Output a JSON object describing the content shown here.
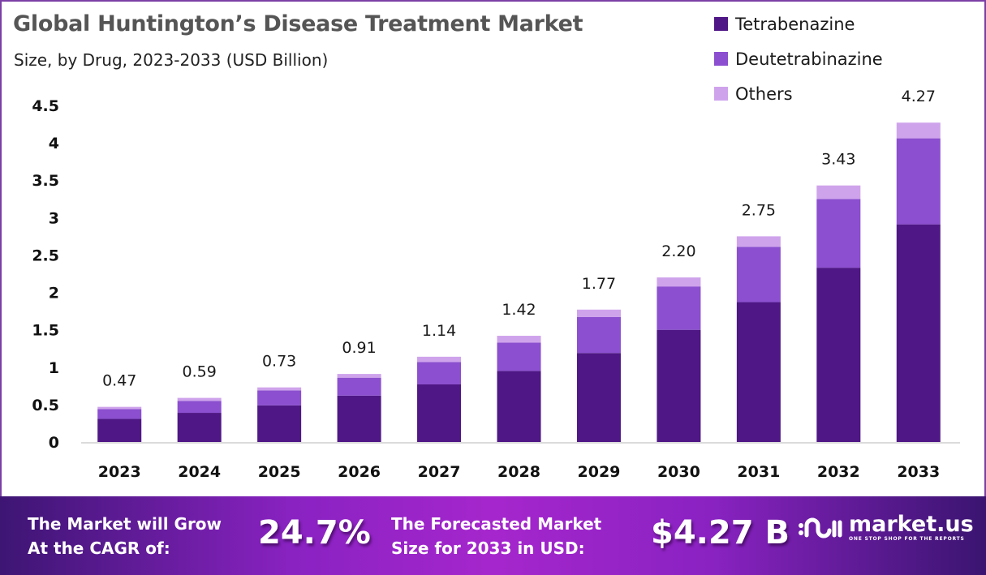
{
  "header": {
    "title": "Global Huntington’s Disease Treatment Market",
    "subtitle": "Size, by Drug, 2023-2033 (USD Billion)"
  },
  "legend": [
    {
      "label": "Tetrabenazine",
      "color": "#4f1785"
    },
    {
      "label": "Deutetrabinazine",
      "color": "#8b4fcf"
    },
    {
      "label": "Others",
      "color": "#cfa3ec"
    }
  ],
  "chart_data": {
    "type": "bar",
    "stacked": true,
    "title": "Global Huntington’s Disease Treatment Market",
    "subtitle": "Size, by Drug, 2023-2033 (USD Billion)",
    "xlabel": "",
    "ylabel": "",
    "ylim": [
      0,
      4.5
    ],
    "yticks": [
      "0",
      "0.5",
      "1",
      "1.5",
      "2",
      "2.5",
      "3",
      "3.5",
      "4",
      "4.5"
    ],
    "grid": false,
    "legend_position": "top-right",
    "categories": [
      "2023",
      "2024",
      "2025",
      "2026",
      "2027",
      "2028",
      "2029",
      "2030",
      "2031",
      "2032",
      "2033"
    ],
    "series": [
      {
        "name": "Tetrabenazine",
        "color": "#4f1785",
        "values": [
          0.31,
          0.39,
          0.49,
          0.62,
          0.77,
          0.95,
          1.19,
          1.5,
          1.87,
          2.33,
          2.91
        ]
      },
      {
        "name": "Deutetrabinazine",
        "color": "#8b4fcf",
        "values": [
          0.13,
          0.16,
          0.2,
          0.24,
          0.3,
          0.38,
          0.48,
          0.58,
          0.74,
          0.92,
          1.15
        ]
      },
      {
        "name": "Others",
        "color": "#cfa3ec",
        "values": [
          0.03,
          0.04,
          0.04,
          0.05,
          0.07,
          0.09,
          0.1,
          0.12,
          0.14,
          0.18,
          0.21
        ]
      }
    ],
    "totals": [
      0.47,
      0.59,
      0.73,
      0.91,
      1.14,
      1.42,
      1.77,
      2.2,
      2.75,
      3.43,
      4.27
    ],
    "total_labels": [
      "0.47",
      "0.59",
      "0.73",
      "0.91",
      "1.14",
      "1.42",
      "1.77",
      "2.20",
      "2.75",
      "3.43",
      "4.27"
    ]
  },
  "footer": {
    "cagr_text_line1": "The Market will Grow",
    "cagr_text_line2": "At the CAGR of:",
    "cagr_value": "24.7%",
    "forecast_text_line1": "The Forecasted Market",
    "forecast_text_line2": "Size for 2033 in USD:",
    "forecast_value": "$4.27 B",
    "logo_name": "market.us",
    "logo_tagline": "ONE STOP SHOP FOR THE REPORTS"
  }
}
